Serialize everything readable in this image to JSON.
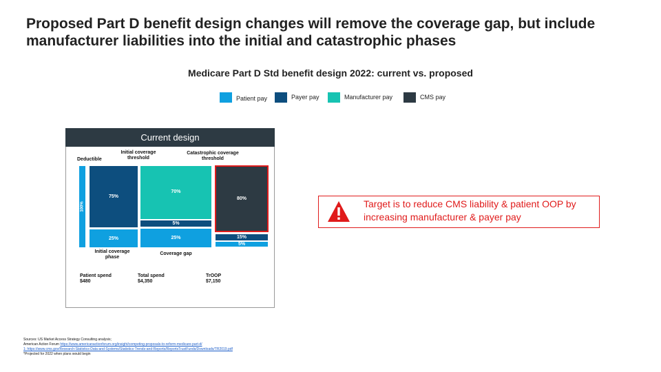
{
  "title": "Proposed Part D benefit design changes will remove the coverage gap, but include manufacturer liabilities into the initial and catastrophic phases",
  "subtitle": "Medicare Part D Std benefit design 2022: current vs. proposed",
  "legend": [
    {
      "label": "Patient pay",
      "color": "#0fa0e0"
    },
    {
      "label": "Payer pay",
      "color": "#0d4e7e"
    },
    {
      "label": "Manufacturer pay",
      "color": "#17c3b2"
    },
    {
      "label": "CMS pay",
      "color": "#2d3a43"
    }
  ],
  "panel": {
    "header": "Current design",
    "labels": {
      "deductible": "Deductible",
      "initial_threshold": "Initial coverage threshold",
      "catastrophic_threshold": "Catastrophic coverage threshold",
      "initial_phase": "Initial coverage phase",
      "coverage_gap": "Coverage gap"
    },
    "segments": {
      "deductible_patient": "100%",
      "initial_payer": "75%",
      "initial_patient": "25%",
      "gap_manufacturer": "70%",
      "gap_payer": "5%",
      "gap_patient": "25%",
      "cat_cms": "80%",
      "cat_payer": "15%",
      "cat_patient": "5%"
    },
    "spend": [
      {
        "label": "Patient spend",
        "value": "$480"
      },
      {
        "label": "Total spend",
        "value": "$4,350"
      },
      {
        "label": "TrOOP",
        "value": "$7,150"
      }
    ]
  },
  "callout": {
    "icon": "warning-triangle-icon",
    "text": "Target is to reduce CMS liability & patient OOP by increasing manufacturer & payer pay",
    "color": "#e01b1b"
  },
  "sources": {
    "line1": "Sources: US Market Access Strategy Consulting analysis;",
    "line2_prefix": "American Action Forum ",
    "line2_link": "https://www.americanactionforum.org/insight/competing-proposals-to-reform-medicare-part-d/",
    "line3": "1: https://www.cms.gov/Research-Statistics-Data-and-Systems/Statistics-Trends-and-Reports/ReportsTrustFunds/Downloads/TR2019.pdf",
    "line4": "*Projected for 2022 when plans would begin"
  }
}
